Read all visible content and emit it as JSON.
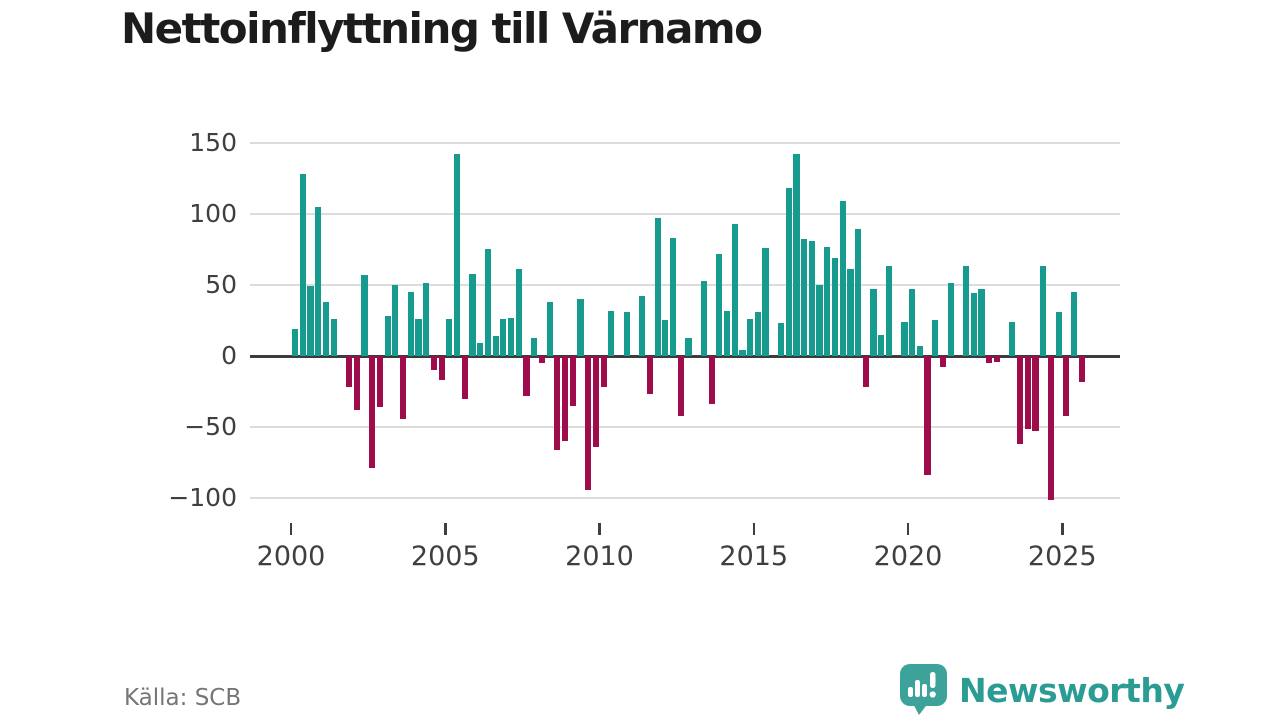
{
  "title": "Nettoinflyttning till Värnamo",
  "source": "Källa: SCB",
  "brand": {
    "name": "Newsworthy",
    "icon": "speech-bubble-bar-chart-icon",
    "icon_color": "#3da29a",
    "text_color": "#2a9c93"
  },
  "chart_data": {
    "type": "bar",
    "title": "Nettoinflyttning till Värnamo",
    "x_start": "2000-Q1",
    "x_frequency": "quarterly",
    "values": [
      19,
      128,
      49,
      105,
      38,
      26,
      0,
      -22,
      -38,
      57,
      -79,
      -36,
      28,
      50,
      -44,
      45,
      26,
      51,
      -10,
      -17,
      26,
      142,
      -30,
      58,
      9,
      75,
      14,
      26,
      27,
      61,
      -28,
      13,
      -5,
      38,
      -66,
      -60,
      -35,
      40,
      -94,
      -64,
      -22,
      32,
      0,
      31,
      0,
      42,
      -27,
      97,
      25,
      83,
      -42,
      13,
      0,
      53,
      -34,
      72,
      32,
      93,
      4,
      26,
      31,
      76,
      0,
      23,
      118,
      142,
      82,
      81,
      50,
      77,
      69,
      109,
      61,
      89,
      -22,
      47,
      15,
      63,
      0,
      24,
      47,
      7,
      -84,
      25,
      -8,
      51,
      0,
      63,
      44,
      47,
      -5,
      -4,
      0,
      24,
      -62,
      -51,
      -53,
      63,
      -101,
      31,
      -42,
      45,
      -18
    ],
    "x_tick_labels": [
      "2000",
      "2005",
      "2010",
      "2015",
      "2020",
      "2025"
    ],
    "x_tick_years": [
      2000,
      2005,
      2010,
      2015,
      2020,
      2025
    ],
    "y_tick_values": [
      150,
      100,
      50,
      0,
      -50,
      -100
    ],
    "y_tick_labels": [
      "150",
      "100",
      "50",
      "0",
      "−50",
      "−100"
    ],
    "ylim": [
      -110,
      158
    ],
    "grid": "horizontal",
    "legend": "none",
    "positive_color": "#169b8e",
    "negative_color": "#9e0c4c",
    "zero_line_color": "#3c3c3c",
    "grid_color": "#dcdcdc"
  }
}
